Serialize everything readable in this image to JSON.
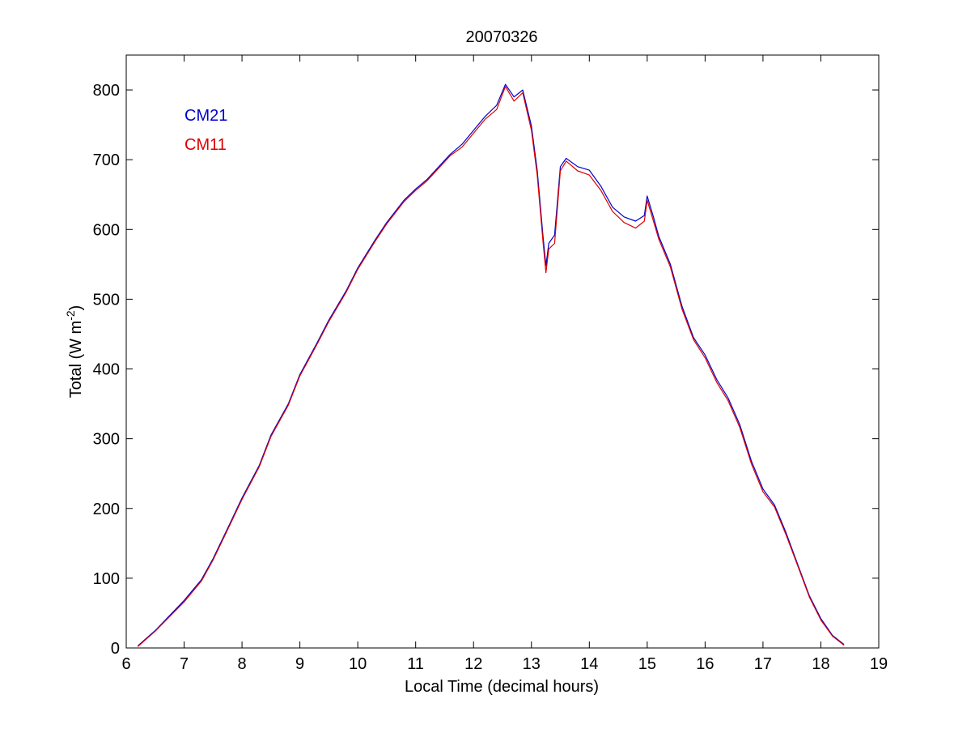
{
  "chart_data": {
    "type": "line",
    "title": "20070326",
    "xlabel": "Local Time (decimal hours)",
    "ylabel_main": "Total (W m",
    "ylabel_sup": "-2",
    "ylabel_close": ")",
    "xlim": [
      6,
      19
    ],
    "ylim": [
      0,
      850
    ],
    "xticks": [
      "6",
      "7",
      "8",
      "9",
      "10",
      "11",
      "12",
      "13",
      "14",
      "15",
      "16",
      "17",
      "18",
      "19"
    ],
    "yticks": [
      "0",
      "100",
      "200",
      "300",
      "400",
      "500",
      "600",
      "700",
      "800"
    ],
    "grid": false,
    "legend_position": "top-left",
    "series": [
      {
        "name": "CM21",
        "color": "#0000cc",
        "points": [
          [
            6.2,
            3
          ],
          [
            6.5,
            25
          ],
          [
            7.0,
            68
          ],
          [
            7.3,
            98
          ],
          [
            7.5,
            128
          ],
          [
            7.8,
            180
          ],
          [
            8.0,
            215
          ],
          [
            8.3,
            262
          ],
          [
            8.5,
            305
          ],
          [
            8.8,
            350
          ],
          [
            9.0,
            392
          ],
          [
            9.3,
            438
          ],
          [
            9.5,
            470
          ],
          [
            9.8,
            512
          ],
          [
            10.0,
            545
          ],
          [
            10.3,
            585
          ],
          [
            10.5,
            610
          ],
          [
            10.8,
            642
          ],
          [
            11.0,
            658
          ],
          [
            11.2,
            672
          ],
          [
            11.4,
            690
          ],
          [
            11.6,
            708
          ],
          [
            11.8,
            722
          ],
          [
            12.0,
            742
          ],
          [
            12.2,
            762
          ],
          [
            12.4,
            778
          ],
          [
            12.55,
            808
          ],
          [
            12.7,
            790
          ],
          [
            12.85,
            800
          ],
          [
            13.0,
            748
          ],
          [
            13.1,
            685
          ],
          [
            13.2,
            590
          ],
          [
            13.25,
            548
          ],
          [
            13.3,
            580
          ],
          [
            13.4,
            592
          ],
          [
            13.5,
            690
          ],
          [
            13.6,
            702
          ],
          [
            13.8,
            690
          ],
          [
            14.0,
            685
          ],
          [
            14.2,
            662
          ],
          [
            14.4,
            632
          ],
          [
            14.6,
            618
          ],
          [
            14.8,
            612
          ],
          [
            14.95,
            620
          ],
          [
            15.0,
            648
          ],
          [
            15.1,
            620
          ],
          [
            15.2,
            590
          ],
          [
            15.4,
            550
          ],
          [
            15.6,
            490
          ],
          [
            15.8,
            445
          ],
          [
            16.0,
            420
          ],
          [
            16.2,
            385
          ],
          [
            16.4,
            358
          ],
          [
            16.6,
            320
          ],
          [
            16.8,
            268
          ],
          [
            17.0,
            228
          ],
          [
            17.2,
            205
          ],
          [
            17.4,
            165
          ],
          [
            17.6,
            120
          ],
          [
            17.8,
            75
          ],
          [
            18.0,
            42
          ],
          [
            18.2,
            18
          ],
          [
            18.4,
            5
          ]
        ]
      },
      {
        "name": "CM11",
        "color": "#dd0000",
        "points": [
          [
            6.2,
            2
          ],
          [
            6.5,
            24
          ],
          [
            7.0,
            66
          ],
          [
            7.3,
            96
          ],
          [
            7.5,
            126
          ],
          [
            7.8,
            178
          ],
          [
            8.0,
            213
          ],
          [
            8.3,
            260
          ],
          [
            8.5,
            303
          ],
          [
            8.8,
            348
          ],
          [
            9.0,
            390
          ],
          [
            9.3,
            436
          ],
          [
            9.5,
            468
          ],
          [
            9.8,
            510
          ],
          [
            10.0,
            543
          ],
          [
            10.3,
            583
          ],
          [
            10.5,
            608
          ],
          [
            10.8,
            640
          ],
          [
            11.0,
            656
          ],
          [
            11.2,
            670
          ],
          [
            11.4,
            688
          ],
          [
            11.6,
            706
          ],
          [
            11.8,
            718
          ],
          [
            12.0,
            738
          ],
          [
            12.2,
            758
          ],
          [
            12.4,
            772
          ],
          [
            12.55,
            805
          ],
          [
            12.7,
            784
          ],
          [
            12.85,
            796
          ],
          [
            13.0,
            742
          ],
          [
            13.1,
            678
          ],
          [
            13.2,
            582
          ],
          [
            13.25,
            538
          ],
          [
            13.3,
            572
          ],
          [
            13.4,
            580
          ],
          [
            13.5,
            684
          ],
          [
            13.6,
            698
          ],
          [
            13.8,
            684
          ],
          [
            14.0,
            678
          ],
          [
            14.2,
            656
          ],
          [
            14.4,
            626
          ],
          [
            14.6,
            610
          ],
          [
            14.8,
            602
          ],
          [
            14.95,
            612
          ],
          [
            15.0,
            642
          ],
          [
            15.1,
            614
          ],
          [
            15.2,
            586
          ],
          [
            15.4,
            546
          ],
          [
            15.6,
            486
          ],
          [
            15.8,
            442
          ],
          [
            16.0,
            416
          ],
          [
            16.2,
            381
          ],
          [
            16.4,
            354
          ],
          [
            16.6,
            316
          ],
          [
            16.8,
            264
          ],
          [
            17.0,
            224
          ],
          [
            17.2,
            202
          ],
          [
            17.4,
            162
          ],
          [
            17.6,
            118
          ],
          [
            17.8,
            73
          ],
          [
            18.0,
            40
          ],
          [
            18.2,
            17
          ],
          [
            18.4,
            4
          ]
        ]
      }
    ]
  }
}
